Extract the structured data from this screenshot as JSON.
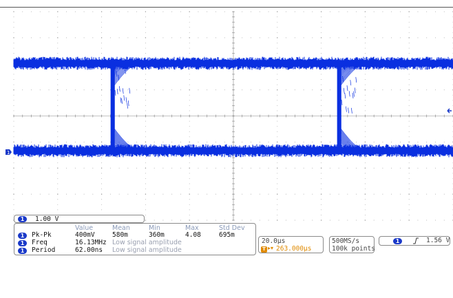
{
  "channel": {
    "number": "1",
    "scale": "1.00 V",
    "marker_label": "1",
    "color": "#0a2fe0"
  },
  "measurements": {
    "headers": [
      "Value",
      "Mean",
      "Min",
      "Max",
      "Std Dev"
    ],
    "rows": [
      {
        "ch": "1",
        "name": "Pk-Pk",
        "value": "400mV",
        "mean": "580m",
        "min": "360m",
        "max": "4.08",
        "std": "695m",
        "note": ""
      },
      {
        "ch": "1",
        "name": "Freq",
        "value": "16.13MHz",
        "mean": "",
        "min": "",
        "max": "",
        "std": "",
        "note": "Low signal amplitude"
      },
      {
        "ch": "1",
        "name": "Period",
        "value": "62.00ns",
        "mean": "",
        "min": "",
        "max": "",
        "std": "",
        "note": "Low signal amplitude"
      }
    ]
  },
  "timebase": {
    "scale": "20.0µs",
    "position_icon": "T",
    "position": "263.000µs"
  },
  "acquisition": {
    "rate": "500MS/s",
    "points": "100k points"
  },
  "trigger": {
    "channel": "1",
    "slope_icon": "rising-edge-icon",
    "level": "1.56 V"
  },
  "colors": {
    "trace": "#0a2fe0",
    "grid": "#9a9a9a",
    "accent_orange": "#e08a00"
  }
}
